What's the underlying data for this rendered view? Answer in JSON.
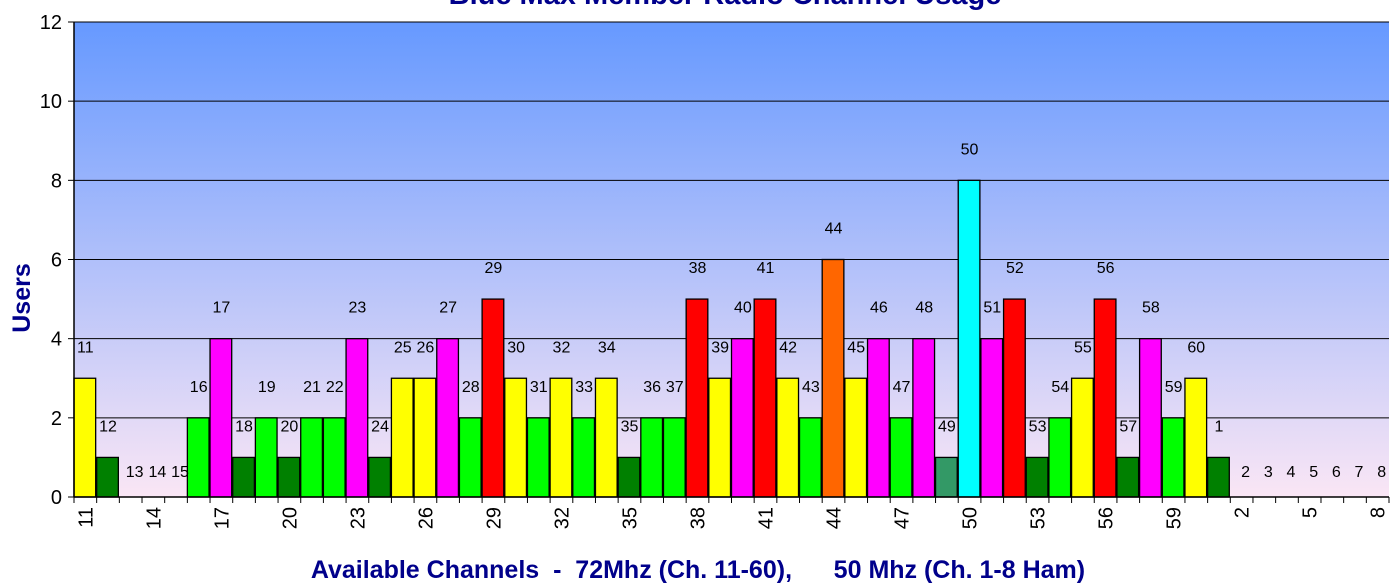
{
  "chart_data": {
    "type": "bar",
    "title": "Blue Max Member Radio Channel Usage",
    "xlabel": "Available Channels  -  72Mhz (Ch. 11-60),      50 Mhz (Ch. 1-8 Ham)",
    "ylabel": "Users",
    "ylim": [
      0,
      12
    ],
    "y_ticks": [
      "0",
      "2",
      "4",
      "6",
      "8",
      "10",
      "12"
    ],
    "grid": true,
    "legend": "none",
    "categories": [
      "11",
      "12",
      "13",
      "14",
      "15",
      "16",
      "17",
      "18",
      "19",
      "20",
      "21",
      "22",
      "23",
      "24",
      "25",
      "26",
      "27",
      "28",
      "29",
      "30",
      "31",
      "32",
      "33",
      "34",
      "35",
      "36",
      "37",
      "38",
      "39",
      "40",
      "41",
      "42",
      "43",
      "44",
      "45",
      "46",
      "47",
      "48",
      "49",
      "50",
      "51",
      "52",
      "53",
      "54",
      "55",
      "56",
      "57",
      "58",
      "59",
      "60",
      "1",
      "2",
      "3",
      "4",
      "5",
      "6",
      "7",
      "8"
    ],
    "x_tick_labels": [
      "11",
      "14",
      "17",
      "20",
      "23",
      "26",
      "29",
      "32",
      "35",
      "38",
      "41",
      "44",
      "47",
      "50",
      "53",
      "56",
      "59",
      "2",
      "5",
      "8"
    ],
    "values": [
      3,
      1,
      0,
      0,
      0,
      2,
      4,
      1,
      2,
      1,
      2,
      2,
      4,
      1,
      3,
      3,
      4,
      2,
      5,
      3,
      2,
      3,
      2,
      3,
      1,
      2,
      2,
      5,
      3,
      4,
      5,
      3,
      2,
      6,
      3,
      4,
      2,
      4,
      1,
      8,
      4,
      5,
      1,
      2,
      3,
      5,
      1,
      4,
      2,
      3,
      1,
      0,
      0,
      0,
      0,
      0,
      0,
      0
    ],
    "bar_colors": [
      "#ffff00",
      "#008000",
      "#ffff00",
      "#ffff00",
      "#ffff00",
      "#00ff00",
      "#ff00ff",
      "#008000",
      "#00ff00",
      "#008000",
      "#00ff00",
      "#00ff00",
      "#ff00ff",
      "#008000",
      "#ffff00",
      "#ffff00",
      "#ff00ff",
      "#00ff00",
      "#ff0000",
      "#ffff00",
      "#00ff00",
      "#ffff00",
      "#00ff00",
      "#ffff00",
      "#008000",
      "#00ff00",
      "#00ff00",
      "#ff0000",
      "#ffff00",
      "#ff00ff",
      "#ff0000",
      "#ffff00",
      "#00ff00",
      "#ff6600",
      "#ffff00",
      "#ff00ff",
      "#00ff00",
      "#ff00ff",
      "#339966",
      "#00ffff",
      "#ff00ff",
      "#ff0000",
      "#008000",
      "#00ff00",
      "#ffff00",
      "#ff0000",
      "#008000",
      "#ff00ff",
      "#00ff00",
      "#ffff00",
      "#008000",
      "#00ff00",
      "#00ff00",
      "#00ff00",
      "#00ff00",
      "#00ff00",
      "#00ff00",
      "#00ff00"
    ],
    "plot_background": {
      "top": "#6699ff",
      "bottom": "#fae6f5"
    }
  }
}
